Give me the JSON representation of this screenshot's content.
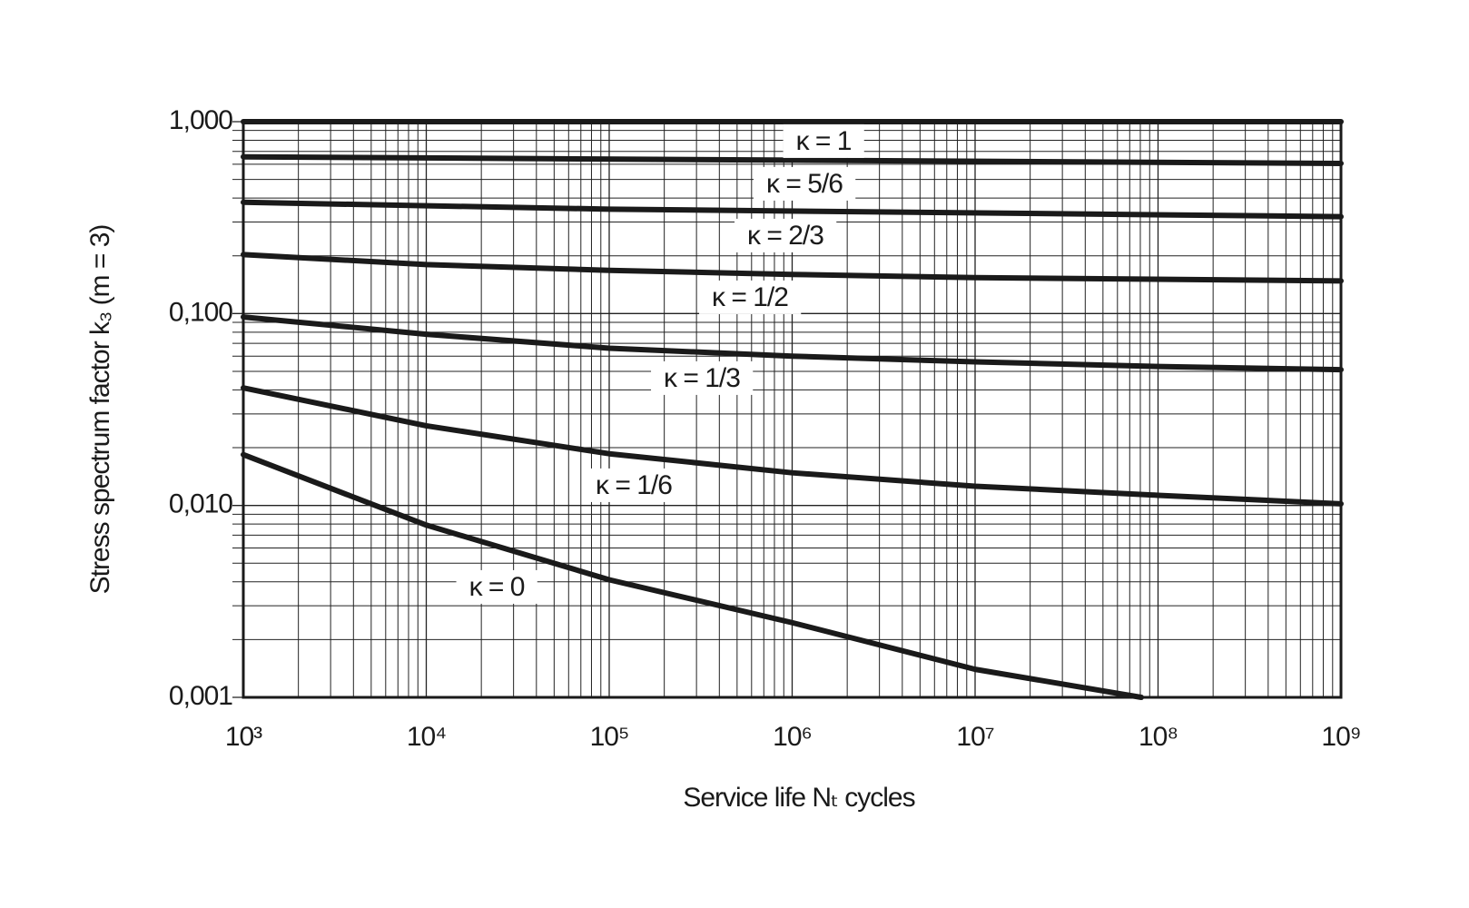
{
  "chart_data": {
    "type": "line",
    "x_label": "Service life Nₜ cycles",
    "y_label": "Stress spectrum factor k₃ (m = 3)",
    "xscale": "log",
    "yscale": "log",
    "grid": true,
    "minor_grid": true,
    "color": "#1a1a1a",
    "xlim": [
      1000,
      1000000000
    ],
    "ylim": [
      0.001,
      1
    ],
    "xticks": [
      {
        "value": 1000,
        "label": "10³"
      },
      {
        "value": 10000,
        "label": "10⁴"
      },
      {
        "value": 100000,
        "label": "10⁵"
      },
      {
        "value": 1000000,
        "label": "10⁶"
      },
      {
        "value": 10000000,
        "label": "10⁷"
      },
      {
        "value": 100000000,
        "label": "10⁸"
      },
      {
        "value": 1000000000,
        "label": "10⁹"
      }
    ],
    "yticks": [
      {
        "value": 1,
        "label": "1,000"
      },
      {
        "value": 0.1,
        "label": "0,100"
      },
      {
        "value": 0.01,
        "label": "0,010"
      },
      {
        "value": 0.001,
        "label": "0,001"
      }
    ],
    "series": [
      {
        "name": "κ = 1",
        "x": [
          1000,
          1000000000
        ],
        "values": [
          1,
          1
        ]
      },
      {
        "name": "κ = 5/6",
        "x": [
          1000,
          1000000,
          1000000000
        ],
        "values": [
          0.656,
          0.63,
          0.606
        ]
      },
      {
        "name": "κ = 2/3",
        "x": [
          1000,
          100000,
          1000000000
        ],
        "values": [
          0.38,
          0.35,
          0.32
        ]
      },
      {
        "name": "κ = 1/2",
        "x": [
          1000,
          10000,
          100000,
          1000000,
          10000000,
          1000000000
        ],
        "values": [
          0.203,
          0.18,
          0.168,
          0.16,
          0.154,
          0.148
        ]
      },
      {
        "name": "κ = 1/3",
        "x": [
          1000,
          10000,
          100000,
          1000000,
          10000000,
          100000000,
          1000000000
        ],
        "values": [
          0.096,
          0.078,
          0.066,
          0.06,
          0.056,
          0.053,
          0.051
        ]
      },
      {
        "name": "κ = 1/6",
        "x": [
          1000,
          10000,
          100000,
          1000000,
          10000000,
          100000000,
          1000000000
        ],
        "values": [
          0.041,
          0.026,
          0.0186,
          0.0148,
          0.0126,
          0.0113,
          0.0102
        ]
      },
      {
        "name": "κ = 0",
        "x": [
          1000,
          10000,
          100000,
          1000000,
          10000000,
          81000000
        ],
        "values": [
          0.0184,
          0.0079,
          0.0041,
          0.00245,
          0.0014,
          0.001
        ]
      }
    ]
  }
}
